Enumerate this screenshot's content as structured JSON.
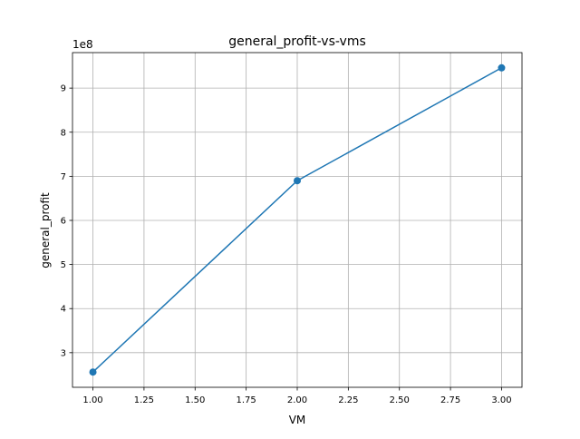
{
  "chart_data": {
    "type": "line",
    "title": "general_profit-vs-vms",
    "xlabel": "VM",
    "ylabel": "general_profit",
    "y_scale_label": "1e8",
    "x": [
      1.0,
      2.0,
      3.0
    ],
    "series": [
      {
        "values": [
          256000000,
          690000000,
          946000000
        ],
        "color": "#1f77b4",
        "marker": "circle"
      }
    ],
    "xlim": [
      0.9,
      3.1
    ],
    "ylim": [
      221500000,
      980500000
    ],
    "x_ticks": [
      1.0,
      1.25,
      1.5,
      1.75,
      2.0,
      2.25,
      2.5,
      2.75,
      3.0
    ],
    "x_tick_labels": [
      "1.00",
      "1.25",
      "1.50",
      "1.75",
      "2.00",
      "2.25",
      "2.50",
      "2.75",
      "3.00"
    ],
    "y_ticks": [
      300000000,
      400000000,
      500000000,
      600000000,
      700000000,
      800000000,
      900000000
    ],
    "y_tick_labels": [
      "3",
      "4",
      "5",
      "6",
      "7",
      "8",
      "9"
    ],
    "grid": true,
    "legend": "none"
  }
}
